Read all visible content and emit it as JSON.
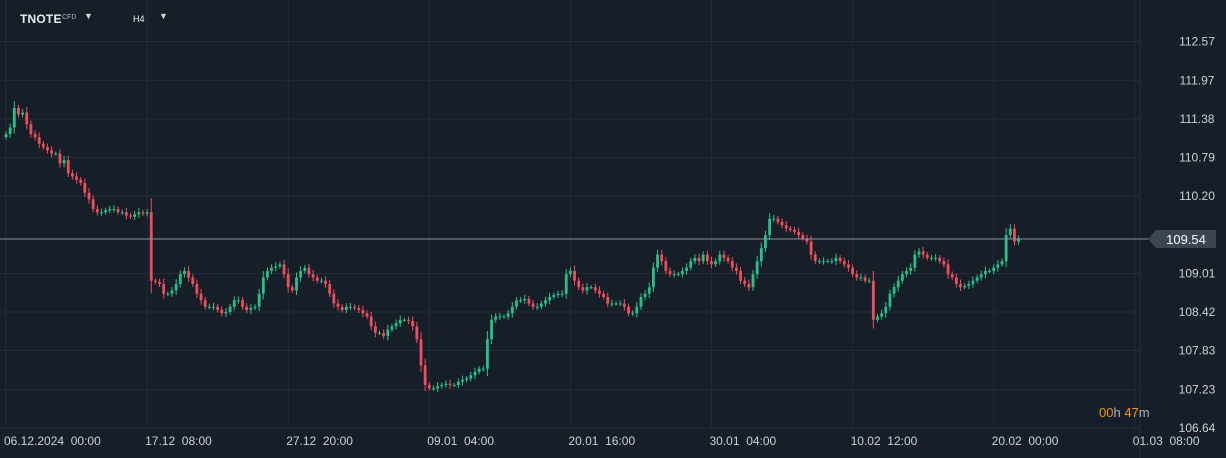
{
  "toolbar": {
    "symbol": "TNOTE",
    "symbol_type": "CFD",
    "timeframe": "H4",
    "dropdown_icon": "caret-down-icon"
  },
  "timer": {
    "hours": "00",
    "hours_unit": "h",
    "minutes": "47",
    "minutes_unit": "m"
  },
  "colors": {
    "background": "#161f27",
    "grid": "#222c36",
    "up": "#27c08a",
    "down": "#ef4d5e",
    "current_line": "#8a96a3",
    "price_badge": "#3c4652",
    "timer": "#f0961a"
  },
  "chart_data": {
    "type": "candlestick",
    "title": "",
    "xlabel": "",
    "ylabel": "",
    "ylim": [
      106.64,
      112.9
    ],
    "y_ticks": [
      "112.57",
      "111.97",
      "111.38",
      "110.79",
      "110.20",
      "109.01",
      "108.42",
      "107.83",
      "107.23",
      "106.64"
    ],
    "x_ticks": [
      "06.12.2024  00:00",
      "17.12  08:00",
      "27.12  20:00",
      "09.01  04:00",
      "20.01  16:00",
      "30.01  04:00",
      "10.02  12:00",
      "20.02  00:00",
      "01.03  08:00"
    ],
    "x_tick_bars": [
      0,
      34,
      68,
      102,
      136,
      170,
      204,
      238,
      272
    ],
    "current_price": "109.54",
    "grid": true,
    "series": [
      {
        "values": [
          111.15,
          111.25,
          111.55,
          111.45,
          111.48,
          111.3,
          111.15,
          111.1,
          111.0,
          110.95,
          110.9,
          110.85,
          110.85,
          110.7,
          110.75,
          110.55,
          110.5,
          110.45,
          110.4,
          110.25,
          110.15,
          110.0,
          109.95,
          109.95,
          109.98,
          110.0,
          110.0,
          109.95,
          109.95,
          109.9,
          109.88,
          109.92,
          109.95,
          109.93,
          109.95,
          108.9,
          108.88,
          108.85,
          108.7,
          108.7,
          108.75,
          108.85,
          109.0,
          109.05,
          108.95,
          108.85,
          108.7,
          108.6,
          108.5,
          108.5,
          108.5,
          108.45,
          108.4,
          108.42,
          108.5,
          108.6,
          108.6,
          108.5,
          108.45,
          108.48,
          108.5,
          108.7,
          108.95,
          109.05,
          109.1,
          109.12,
          109.15,
          109.0,
          108.8,
          108.75,
          108.95,
          109.05,
          109.1,
          109.0,
          108.95,
          108.9,
          108.9,
          108.85,
          108.7,
          108.55,
          108.5,
          108.45,
          108.5,
          108.5,
          108.48,
          108.45,
          108.4,
          108.35,
          108.2,
          108.1,
          108.1,
          108.05,
          108.15,
          108.2,
          108.25,
          108.3,
          108.3,
          108.28,
          108.2,
          108.0,
          107.6,
          107.3,
          107.25,
          107.25,
          107.28,
          107.3,
          107.32,
          107.3,
          107.3,
          107.35,
          107.38,
          107.4,
          107.45,
          107.5,
          107.55,
          107.55,
          108.0,
          108.3,
          108.35,
          108.35,
          108.35,
          108.4,
          108.5,
          108.6,
          108.6,
          108.62,
          108.55,
          108.5,
          108.5,
          108.55,
          108.6,
          108.65,
          108.68,
          108.7,
          108.7,
          109.0,
          109.05,
          108.9,
          108.8,
          108.75,
          108.8,
          108.8,
          108.75,
          108.7,
          108.65,
          108.55,
          108.55,
          108.55,
          108.55,
          108.5,
          108.4,
          108.4,
          108.5,
          108.65,
          108.7,
          108.8,
          109.1,
          109.3,
          109.2,
          109.05,
          109.0,
          109.0,
          109.0,
          109.05,
          109.1,
          109.2,
          109.25,
          109.2,
          109.3,
          109.2,
          109.15,
          109.2,
          109.3,
          109.25,
          109.2,
          109.1,
          109.05,
          108.9,
          108.85,
          108.8,
          109.0,
          109.2,
          109.4,
          109.6,
          109.85,
          109.85,
          109.8,
          109.75,
          109.7,
          109.68,
          109.65,
          109.6,
          109.55,
          109.5,
          109.3,
          109.2,
          109.2,
          109.2,
          109.2,
          109.2,
          109.25,
          109.2,
          109.15,
          109.1,
          109.0,
          108.95,
          108.95,
          108.9,
          108.9,
          108.3,
          108.35,
          108.4,
          108.5,
          108.7,
          108.8,
          108.9,
          109.0,
          109.05,
          109.1,
          109.3,
          109.35,
          109.3,
          109.25,
          109.25,
          109.25,
          109.2,
          109.15,
          109.0,
          108.95,
          108.85,
          108.8,
          108.82,
          108.85,
          108.9,
          108.95,
          109.0,
          109.05,
          109.05,
          109.1,
          109.15,
          109.2,
          109.6,
          109.7,
          109.5,
          109.54
        ],
        "labels": [
          "06.12.2024  00:00",
          "17.12  08:00",
          "27.12  20:00",
          "09.01  04:00",
          "20.01  16:00",
          "30.01  04:00",
          "10.02  12:00",
          "20.02  00:00",
          "01.03  08:00"
        ]
      }
    ]
  }
}
